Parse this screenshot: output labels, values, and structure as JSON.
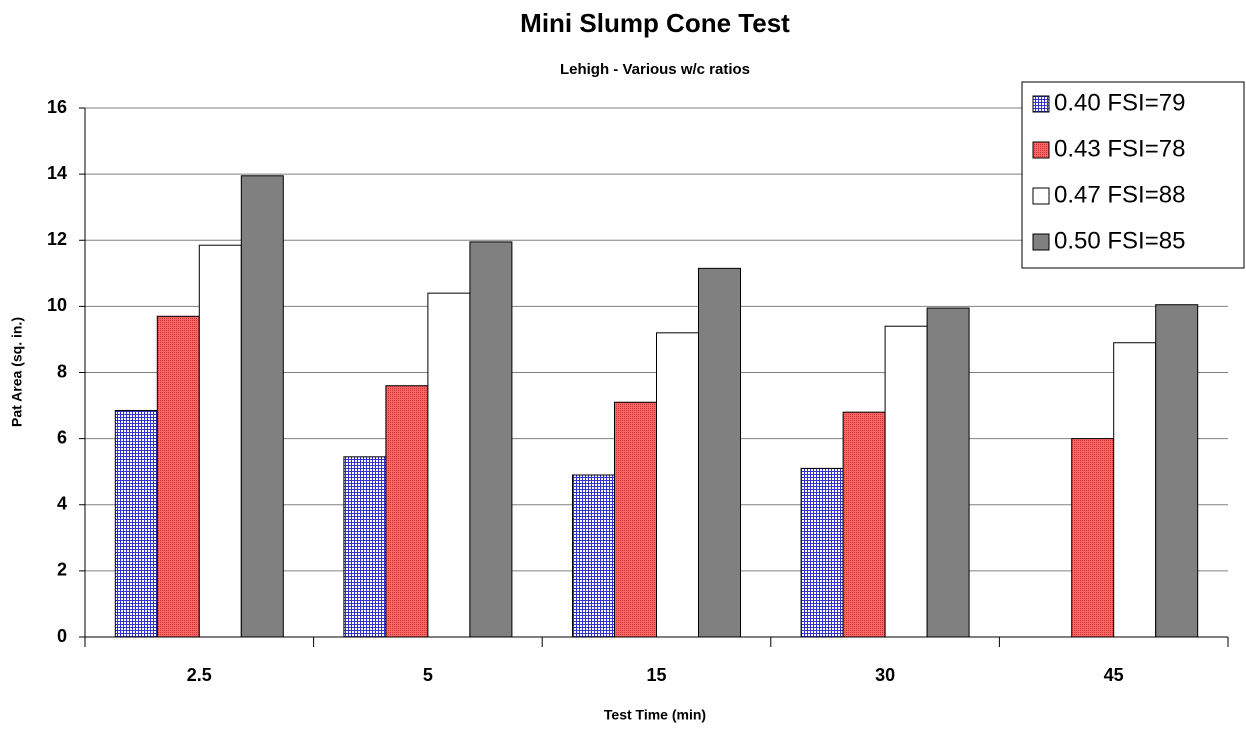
{
  "chart_data": {
    "type": "bar",
    "title": "Mini Slump Cone Test",
    "subtitle": "Lehigh - Various w/c ratios",
    "x_label": "Test Time (min)",
    "y_label": "Pat Area (sq. in.)",
    "categories": [
      "2.5",
      "5",
      "15",
      "30",
      "45"
    ],
    "series": [
      {
        "name": "0.40 FSI=79",
        "color": "#3333cc",
        "values": [
          6.85,
          5.45,
          4.9,
          5.1,
          null
        ]
      },
      {
        "name": "0.43 FSI=78",
        "color": "#ff6666",
        "values": [
          9.7,
          7.6,
          7.1,
          6.8,
          6.0
        ]
      },
      {
        "name": "0.47 FSI=88",
        "color": "#ffffff",
        "values": [
          11.85,
          10.4,
          9.2,
          9.4,
          8.9
        ]
      },
      {
        "name": "0.50 FSI=85",
        "color": "#808080",
        "values": [
          13.95,
          11.95,
          11.15,
          9.95,
          10.05
        ]
      }
    ],
    "ylim": [
      0,
      16
    ],
    "yticks": [
      0,
      2,
      4,
      6,
      8,
      10,
      12,
      14,
      16
    ],
    "grid": true,
    "legend": "top-right"
  }
}
